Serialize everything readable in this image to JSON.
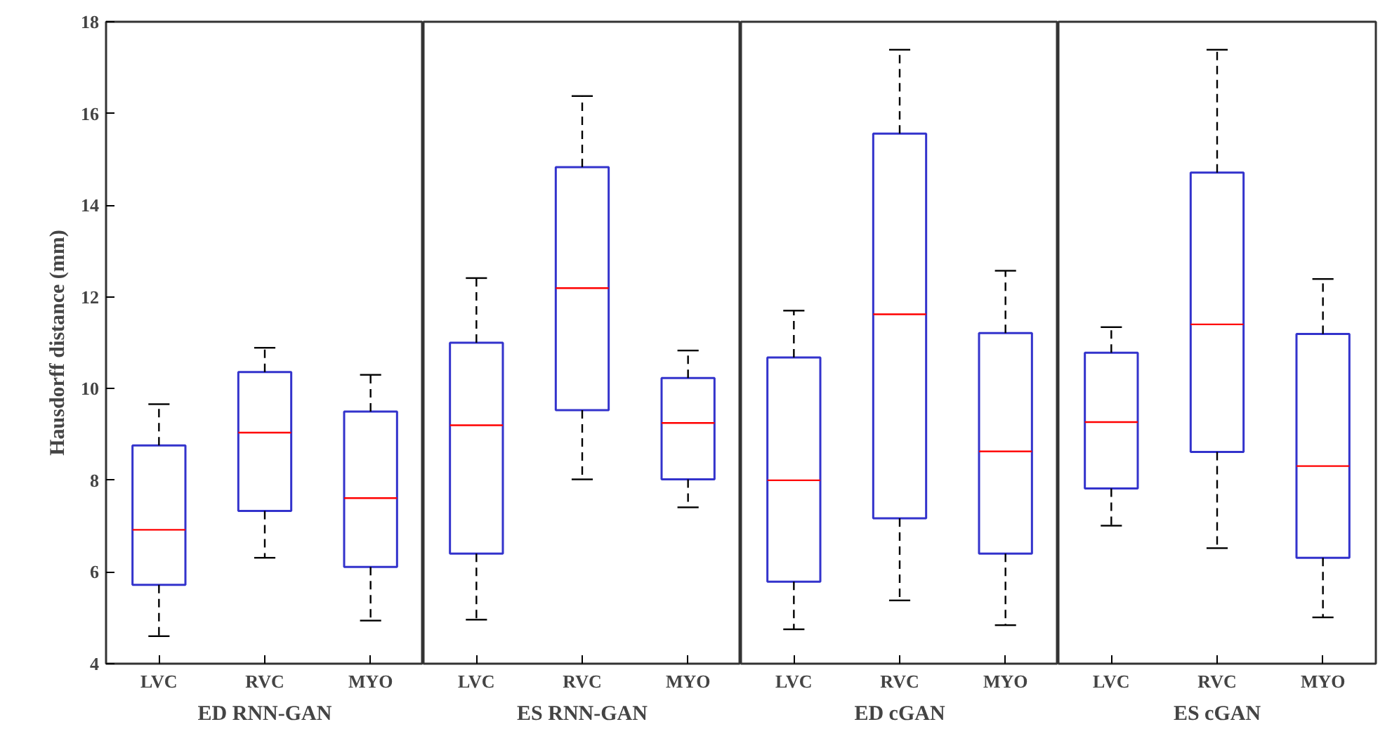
{
  "chart_data": [
    {
      "type": "box",
      "xlabel": "ED RNN-GAN",
      "ylabel": "Hausdorff distance (mm)",
      "categories": [
        "LVC",
        "RVC",
        "MYO"
      ],
      "ylim": [
        4,
        18
      ],
      "yticks": [
        4,
        6,
        8,
        10,
        12,
        14,
        16,
        18
      ],
      "grid": false,
      "series": [
        {
          "color": "#3333cc",
          "boxes": [
            {
              "low": 4.6,
              "q1": 5.72,
              "median": 6.92,
              "q3": 8.76,
              "high": 9.66
            },
            {
              "low": 6.31,
              "q1": 7.33,
              "median": 9.04,
              "q3": 10.36,
              "high": 10.89
            },
            {
              "low": 4.94,
              "q1": 6.11,
              "median": 7.61,
              "q3": 9.5,
              "high": 10.3
            }
          ]
        }
      ]
    },
    {
      "type": "box",
      "xlabel": "ES RNN-GAN",
      "categories": [
        "LVC",
        "RVC",
        "MYO"
      ],
      "ylim": [
        4,
        18
      ],
      "yticks": [
        4,
        6,
        8,
        10,
        12,
        14,
        16,
        18
      ],
      "grid": false,
      "tick_labels": "x",
      "series": [
        {
          "color": "#3333cc",
          "boxes": [
            {
              "low": 4.96,
              "q1": 6.4,
              "median": 9.2,
              "q3": 11.0,
              "high": 12.41
            },
            {
              "low": 8.02,
              "q1": 9.53,
              "median": 12.19,
              "q3": 14.83,
              "high": 16.38
            },
            {
              "low": 7.41,
              "q1": 8.02,
              "median": 9.25,
              "q3": 10.23,
              "high": 10.83
            }
          ]
        }
      ]
    },
    {
      "type": "box",
      "xlabel": "ED cGAN",
      "categories": [
        "LVC",
        "RVC",
        "MYO"
      ],
      "ylim": [
        4,
        18
      ],
      "yticks": [
        4,
        6,
        8,
        10,
        12,
        14,
        16,
        18
      ],
      "grid": false,
      "tick_labels": "x",
      "series": [
        {
          "color": "#3333cc",
          "boxes": [
            {
              "low": 4.75,
              "q1": 5.79,
              "median": 8.0,
              "q3": 10.68,
              "high": 11.7
            },
            {
              "low": 5.38,
              "q1": 7.17,
              "median": 11.62,
              "q3": 15.56,
              "high": 17.39
            },
            {
              "low": 4.84,
              "q1": 6.4,
              "median": 8.63,
              "q3": 11.21,
              "high": 12.57
            }
          ]
        }
      ]
    },
    {
      "type": "box",
      "xlabel": "ES cGAN",
      "categories": [
        "LVC",
        "RVC",
        "MYO"
      ],
      "ylim": [
        4,
        18
      ],
      "yticks": [
        4,
        6,
        8,
        10,
        12,
        14,
        16,
        18
      ],
      "grid": false,
      "tick_labels": "x",
      "series": [
        {
          "color": "#3333cc",
          "boxes": [
            {
              "low": 7.01,
              "q1": 7.82,
              "median": 9.27,
              "q3": 10.78,
              "high": 11.34
            },
            {
              "low": 6.52,
              "q1": 8.62,
              "median": 11.4,
              "q3": 14.71,
              "high": 17.39
            },
            {
              "low": 5.01,
              "q1": 6.31,
              "median": 8.31,
              "q3": 11.19,
              "high": 12.39
            }
          ]
        }
      ]
    }
  ]
}
